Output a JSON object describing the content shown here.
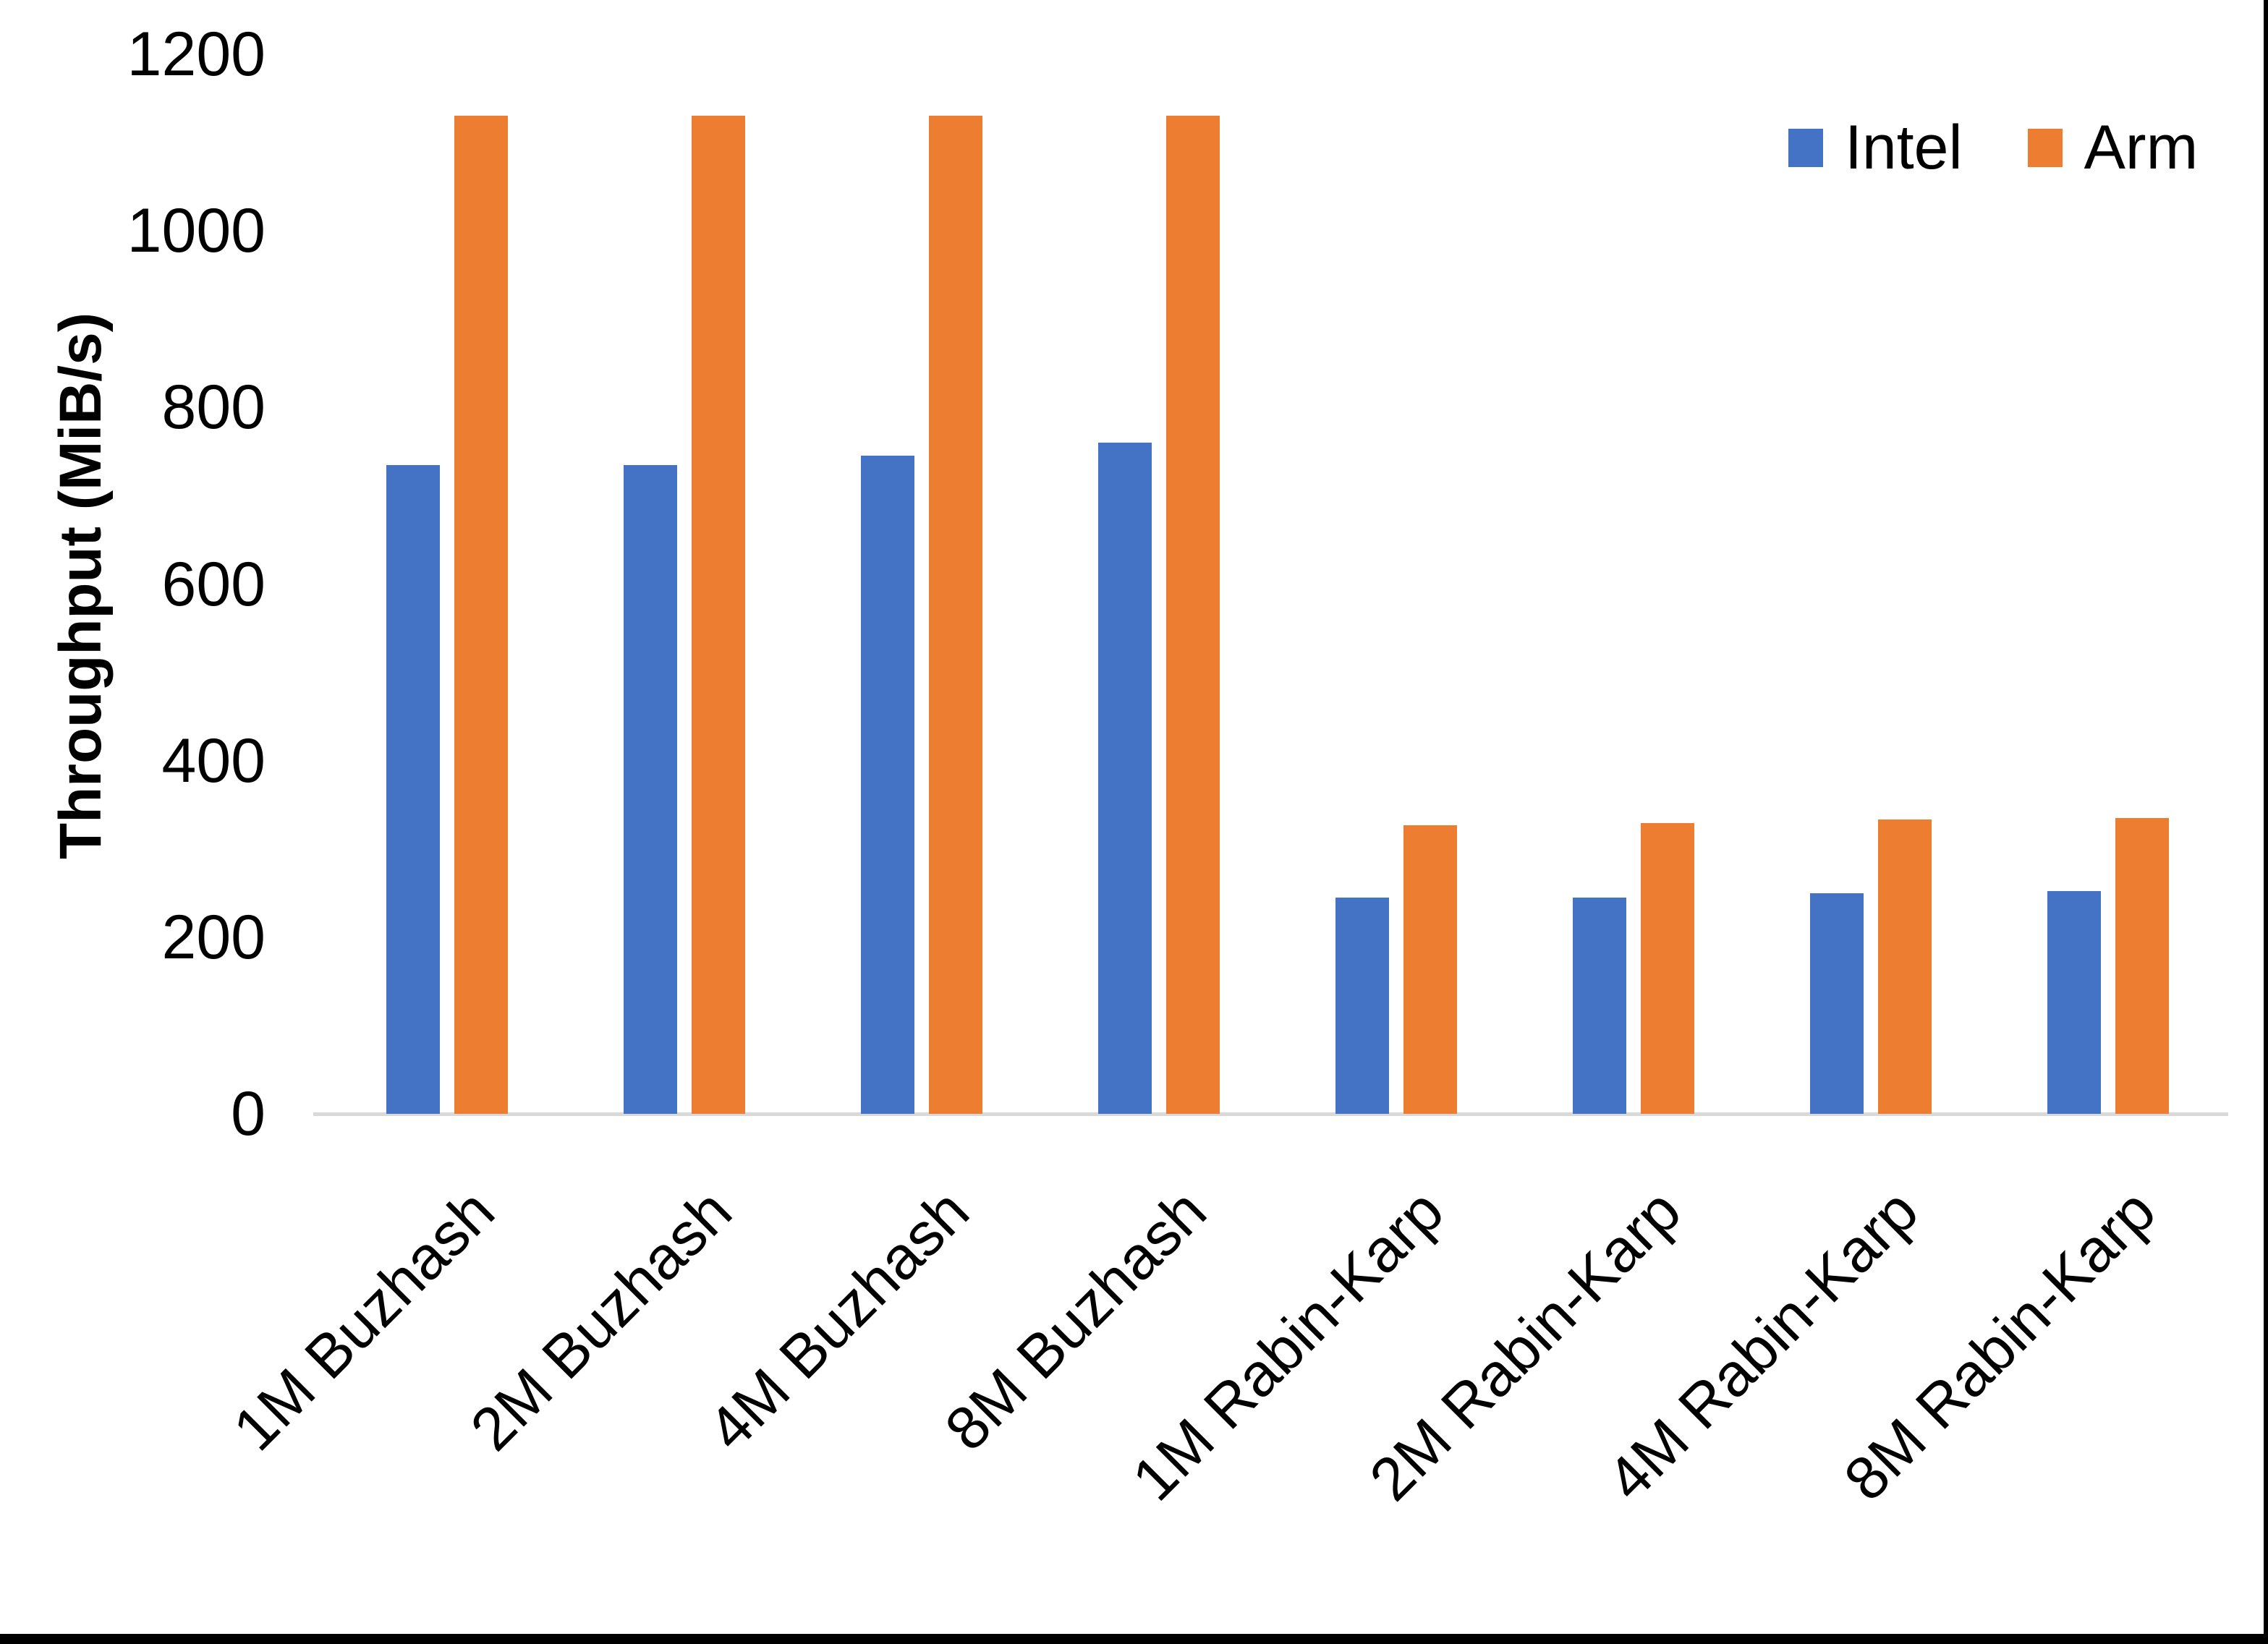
{
  "chart_data": {
    "type": "bar",
    "title": "",
    "xlabel": "",
    "ylabel": "Throughput (MiB/s)",
    "categories": [
      "1M Buzhash",
      "2M Buzhash",
      "4M Buzhash",
      "8M Buzhash",
      "1M Rabin-Karp",
      "2M Rabin-Karp",
      "4M Rabin-Karp",
      "8M Rabin-Karp"
    ],
    "series": [
      {
        "name": "Intel",
        "color": "#4472C4",
        "values": [
          735,
          735,
          745,
          760,
          245,
          245,
          250,
          252
        ]
      },
      {
        "name": "Arm",
        "color": "#ED7D31",
        "values": [
          1130,
          1130,
          1130,
          1130,
          327,
          329,
          333,
          335
        ]
      }
    ],
    "ylim": [
      0,
      1200
    ],
    "yticks": [
      1200,
      1000,
      800,
      600,
      400,
      200,
      0
    ],
    "grid": false,
    "legend_position": "top-right",
    "axis_line_color": "#D9D9D9",
    "page_border_color": "#000000",
    "background_color": "#FFFFFF"
  }
}
